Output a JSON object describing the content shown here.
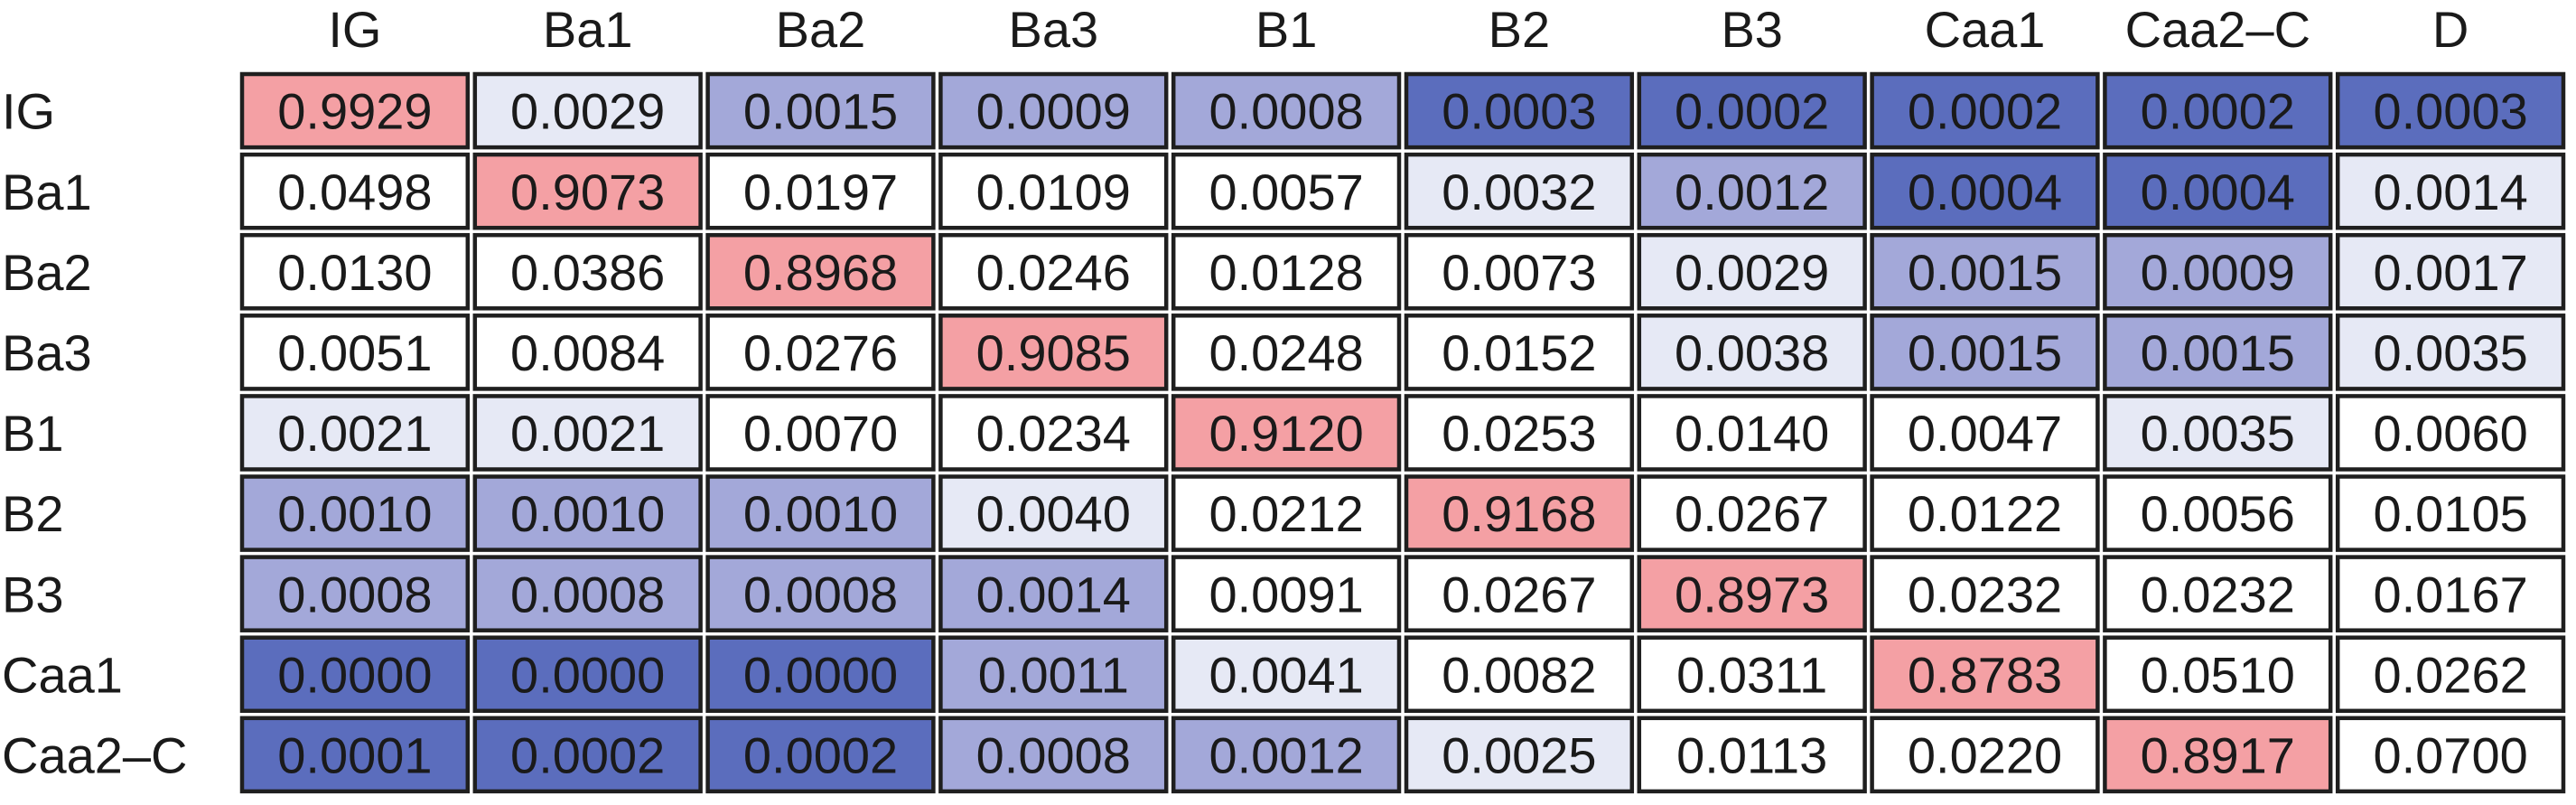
{
  "chart_data": {
    "type": "heatmap",
    "columns": [
      "IG",
      "Ba1",
      "Ba2",
      "Ba3",
      "B1",
      "B2",
      "B3",
      "Caa1",
      "Caa2–C",
      "D"
    ],
    "rows": [
      "IG",
      "Ba1",
      "Ba2",
      "Ba3",
      "B1",
      "B2",
      "B3",
      "Caa1",
      "Caa2–C"
    ],
    "values": [
      [
        "0.9929",
        "0.0029",
        "0.0015",
        "0.0009",
        "0.0008",
        "0.0003",
        "0.0002",
        "0.0002",
        "0.0002",
        "0.0003"
      ],
      [
        "0.0498",
        "0.9073",
        "0.0197",
        "0.0109",
        "0.0057",
        "0.0032",
        "0.0012",
        "0.0004",
        "0.0004",
        "0.0014"
      ],
      [
        "0.0130",
        "0.0386",
        "0.8968",
        "0.0246",
        "0.0128",
        "0.0073",
        "0.0029",
        "0.0015",
        "0.0009",
        "0.0017"
      ],
      [
        "0.0051",
        "0.0084",
        "0.0276",
        "0.9085",
        "0.0248",
        "0.0152",
        "0.0038",
        "0.0015",
        "0.0015",
        "0.0035"
      ],
      [
        "0.0021",
        "0.0021",
        "0.0070",
        "0.0234",
        "0.9120",
        "0.0253",
        "0.0140",
        "0.0047",
        "0.0035",
        "0.0060"
      ],
      [
        "0.0010",
        "0.0010",
        "0.0010",
        "0.0040",
        "0.0212",
        "0.9168",
        "0.0267",
        "0.0122",
        "0.0056",
        "0.0105"
      ],
      [
        "0.0008",
        "0.0008",
        "0.0008",
        "0.0014",
        "0.0091",
        "0.0267",
        "0.8973",
        "0.0232",
        "0.0232",
        "0.0167"
      ],
      [
        "0.0000",
        "0.0000",
        "0.0000",
        "0.0011",
        "0.0041",
        "0.0082",
        "0.0311",
        "0.8783",
        "0.0510",
        "0.0262"
      ],
      [
        "0.0001",
        "0.0002",
        "0.0002",
        "0.0008",
        "0.0012",
        "0.0025",
        "0.0113",
        "0.0220",
        "0.8917",
        "0.0700"
      ]
    ],
    "cell_colors": [
      [
        "#f4a0a4",
        "#e6e9f5",
        "#a3a8d9",
        "#a3a8d9",
        "#a3a8d9",
        "#5b6dbd",
        "#5b6dbd",
        "#5b6dbd",
        "#5b6dbd",
        "#5b6dbd"
      ],
      [
        "#ffffff",
        "#f4a0a4",
        "#ffffff",
        "#ffffff",
        "#ffffff",
        "#e6e9f5",
        "#a3a8d9",
        "#5b6dbd",
        "#5b6dbd",
        "#e6e9f5"
      ],
      [
        "#ffffff",
        "#ffffff",
        "#f4a0a4",
        "#ffffff",
        "#ffffff",
        "#ffffff",
        "#e6e9f5",
        "#a3a8d9",
        "#a3a8d9",
        "#e6e9f5"
      ],
      [
        "#ffffff",
        "#ffffff",
        "#ffffff",
        "#f4a0a4",
        "#ffffff",
        "#ffffff",
        "#e6e9f5",
        "#a3a8d9",
        "#a3a8d9",
        "#e6e9f5"
      ],
      [
        "#e6e9f5",
        "#e6e9f5",
        "#ffffff",
        "#ffffff",
        "#f4a0a4",
        "#ffffff",
        "#ffffff",
        "#ffffff",
        "#e6e9f5",
        "#ffffff"
      ],
      [
        "#a3a8d9",
        "#a3a8d9",
        "#a3a8d9",
        "#e6e9f5",
        "#ffffff",
        "#f4a0a4",
        "#ffffff",
        "#ffffff",
        "#ffffff",
        "#ffffff"
      ],
      [
        "#a3a8d9",
        "#a3a8d9",
        "#a3a8d9",
        "#a3a8d9",
        "#ffffff",
        "#ffffff",
        "#f4a0a4",
        "#ffffff",
        "#ffffff",
        "#ffffff"
      ],
      [
        "#5b6dbd",
        "#5b6dbd",
        "#5b6dbd",
        "#a3a8d9",
        "#e6e9f5",
        "#ffffff",
        "#ffffff",
        "#f4a0a4",
        "#ffffff",
        "#ffffff"
      ],
      [
        "#5b6dbd",
        "#5b6dbd",
        "#5b6dbd",
        "#a3a8d9",
        "#a3a8d9",
        "#e6e9f5",
        "#ffffff",
        "#ffffff",
        "#f4a0a4",
        "#ffffff"
      ]
    ],
    "colors": {
      "diagonal": "#f4a0a4",
      "dark_blue": "#5b6dbd",
      "mid_blue": "#a3a8d9",
      "light_blue": "#e6e9f5",
      "white": "#ffffff",
      "text": "#1a1a1a",
      "border": "#1f1f1f"
    },
    "title": "",
    "xlabel": "",
    "ylabel": ""
  }
}
